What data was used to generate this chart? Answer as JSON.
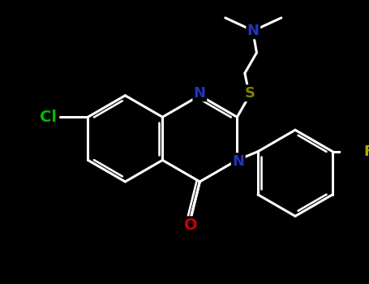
{
  "bg_color": "#000000",
  "bond_color": "#ffffff",
  "bond_lw": 2.2,
  "atom_colors": {
    "N": "#2233bb",
    "O": "#cc0000",
    "S": "#808000",
    "Cl": "#00bb00",
    "F": "#aaaa00"
  },
  "font_size": 13,
  "BL": 0.38,
  "figsize": [
    4.55,
    3.5
  ],
  "dpi": 100,
  "xlim": [
    -1.5,
    1.5
  ],
  "ylim": [
    -1.1,
    1.2
  ]
}
